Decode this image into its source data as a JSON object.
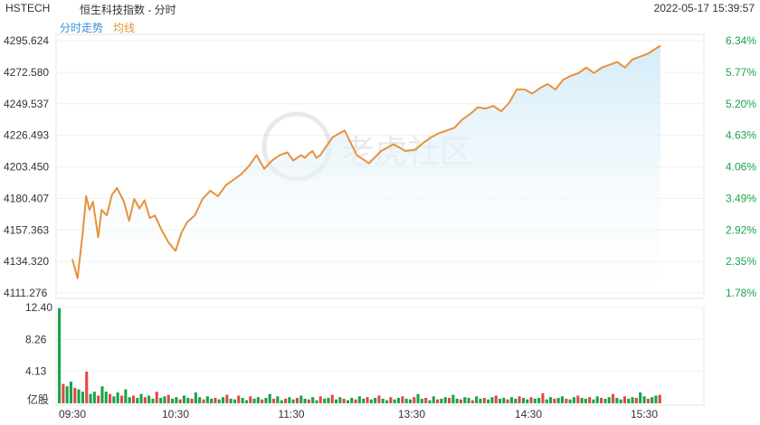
{
  "header": {
    "ticker": "HSTECH",
    "name": "恒生科技指数 - 分时",
    "datetime": "2022-05-17 15:39:57"
  },
  "tabs": [
    {
      "label": "分时走势",
      "color": "#3a8fd6"
    },
    {
      "label": "均线",
      "color": "#e3952f"
    }
  ],
  "watermark": "老虎社区",
  "colors": {
    "line": "#e8923a",
    "area_top": "#cfeaf8",
    "up": "#1aa34a",
    "down": "#e64646",
    "pct": "#1aa34a",
    "grid": "#e5e5e5"
  },
  "chart_data": [
    {
      "type": "line",
      "title": "",
      "x_ticks": [
        "09:30",
        "10:30",
        "11:30",
        "13:30",
        "14:30",
        "15:30"
      ],
      "y_ticks": [
        4295.624,
        4272.58,
        4249.537,
        4226.493,
        4203.45,
        4180.407,
        4157.363,
        4134.32,
        4111.276
      ],
      "y_ticks_pct": [
        "6.34%",
        "5.77%",
        "5.20%",
        "4.63%",
        "4.06%",
        "3.49%",
        "2.92%",
        "2.35%",
        "1.78%"
      ],
      "ylim": [
        4111.276,
        4295.624
      ],
      "series": [
        {
          "points": [
            [
              "09:30",
              4136
            ],
            [
              "09:33",
              4122
            ],
            [
              "09:36",
              4155
            ],
            [
              "09:38",
              4182
            ],
            [
              "09:40",
              4172
            ],
            [
              "09:42",
              4178
            ],
            [
              "09:45",
              4152
            ],
            [
              "09:47",
              4172
            ],
            [
              "09:50",
              4168
            ],
            [
              "09:53",
              4183
            ],
            [
              "09:56",
              4188
            ],
            [
              "10:00",
              4178
            ],
            [
              "10:03",
              4164
            ],
            [
              "10:06",
              4180
            ],
            [
              "10:09",
              4173
            ],
            [
              "10:12",
              4179
            ],
            [
              "10:15",
              4166
            ],
            [
              "10:18",
              4168
            ],
            [
              "10:22",
              4157
            ],
            [
              "10:26",
              4148
            ],
            [
              "10:30",
              4142
            ],
            [
              "10:33",
              4155
            ],
            [
              "10:36",
              4163
            ],
            [
              "10:40",
              4168
            ],
            [
              "10:44",
              4180
            ],
            [
              "10:48",
              4186
            ],
            [
              "10:52",
              4182
            ],
            [
              "10:56",
              4190
            ],
            [
              "11:00",
              4194
            ],
            [
              "11:04",
              4198
            ],
            [
              "11:08",
              4204
            ],
            [
              "11:12",
              4212
            ],
            [
              "11:16",
              4202
            ],
            [
              "11:20",
              4208
            ],
            [
              "11:24",
              4212
            ],
            [
              "11:28",
              4214
            ],
            [
              "11:32",
              4208
            ],
            [
              "11:36",
              4210
            ],
            [
              "11:40",
              4212
            ],
            [
              "11:44",
              4210
            ],
            [
              "11:48",
              4213
            ],
            [
              "11:52",
              4215
            ],
            [
              "11:56",
              4210
            ],
            [
              "12:00",
              4212
            ],
            [
              "13:00",
              4212
            ],
            [
              "13:04",
              4225
            ],
            [
              "13:08",
              4230
            ],
            [
              "13:12",
              4212
            ],
            [
              "13:16",
              4206
            ],
            [
              "13:20",
              4215
            ],
            [
              "13:24",
              4220
            ],
            [
              "13:28",
              4215
            ],
            [
              "13:32",
              4216
            ],
            [
              "13:36",
              4221
            ],
            [
              "13:40",
              4225
            ],
            [
              "13:44",
              4228
            ],
            [
              "13:48",
              4230
            ],
            [
              "13:52",
              4232
            ],
            [
              "13:56",
              4238
            ],
            [
              "14:00",
              4242
            ],
            [
              "14:04",
              4247
            ],
            [
              "14:08",
              4246
            ],
            [
              "14:12",
              4248
            ],
            [
              "14:16",
              4244
            ],
            [
              "14:20",
              4250
            ],
            [
              "14:24",
              4260
            ],
            [
              "14:28",
              4260
            ],
            [
              "14:32",
              4257
            ],
            [
              "14:36",
              4261
            ],
            [
              "14:40",
              4264
            ],
            [
              "14:44",
              4260
            ],
            [
              "14:48",
              4267
            ],
            [
              "14:52",
              4270
            ],
            [
              "14:56",
              4272
            ],
            [
              "15:00",
              4276
            ],
            [
              "15:04",
              4272
            ],
            [
              "15:08",
              4276
            ],
            [
              "15:12",
              4278
            ],
            [
              "15:16",
              4280
            ],
            [
              "15:20",
              4276
            ],
            [
              "15:24",
              4282
            ],
            [
              "15:28",
              4284
            ],
            [
              "15:32",
              4286
            ],
            [
              "15:36",
              4289
            ],
            [
              "15:40",
              4292
            ]
          ]
        }
      ]
    },
    {
      "type": "bar",
      "title": "",
      "ylabel": "亿股",
      "y_ticks": [
        12.4,
        8.26,
        4.13
      ],
      "ylim": [
        0,
        12.4
      ],
      "values": [
        12.3,
        2.5,
        2.2,
        2.8,
        2.0,
        1.8,
        1.5,
        4.1,
        1.2,
        1.5,
        1.0,
        2.2,
        1.5,
        1.2,
        0.9,
        1.4,
        1.0,
        1.8,
        0.8,
        1.0,
        0.7,
        1.2,
        0.8,
        1.0,
        0.6,
        1.5,
        0.7,
        0.9,
        1.1,
        0.6,
        0.8,
        0.5,
        1.0,
        0.7,
        0.6,
        1.4,
        0.8,
        0.5,
        0.9,
        0.6,
        0.7,
        0.5,
        0.8,
        1.1,
        0.6,
        0.5,
        1.0,
        0.7,
        0.4,
        0.9,
        0.6,
        0.8,
        0.5,
        0.7,
        1.2,
        0.6,
        0.9,
        0.4,
        0.6,
        0.8,
        0.5,
        0.7,
        1.0,
        0.6,
        0.5,
        0.8,
        0.4,
        0.9,
        0.6,
        0.7,
        1.1,
        0.5,
        0.8,
        0.6,
        0.4,
        0.7,
        0.5,
        0.9,
        0.6,
        0.8,
        0.5,
        0.7,
        1.0,
        0.6,
        0.4,
        0.8,
        0.5,
        0.7,
        0.9,
        0.6,
        0.5,
        0.8,
        1.2,
        0.6,
        0.7,
        0.4,
        0.9,
        0.5,
        0.6,
        0.8,
        0.7,
        1.1,
        0.6,
        0.5,
        0.8,
        0.7,
        0.4,
        0.9,
        0.6,
        0.7,
        0.5,
        0.8,
        1.0,
        0.6,
        0.7,
        0.5,
        0.8,
        0.6,
        0.9,
        0.7,
        0.5,
        0.8,
        0.6,
        0.7,
        1.3,
        0.5,
        0.8,
        0.6,
        0.7,
        0.9,
        0.6,
        0.5,
        0.8,
        1.0,
        0.7,
        0.6,
        0.8,
        0.5,
        0.9,
        0.7,
        0.6,
        0.8,
        1.2,
        0.7,
        0.5,
        0.9,
        0.6,
        0.8,
        0.7,
        1.4,
        0.9,
        0.6,
        0.8,
        1.0,
        1.1
      ]
    }
  ]
}
